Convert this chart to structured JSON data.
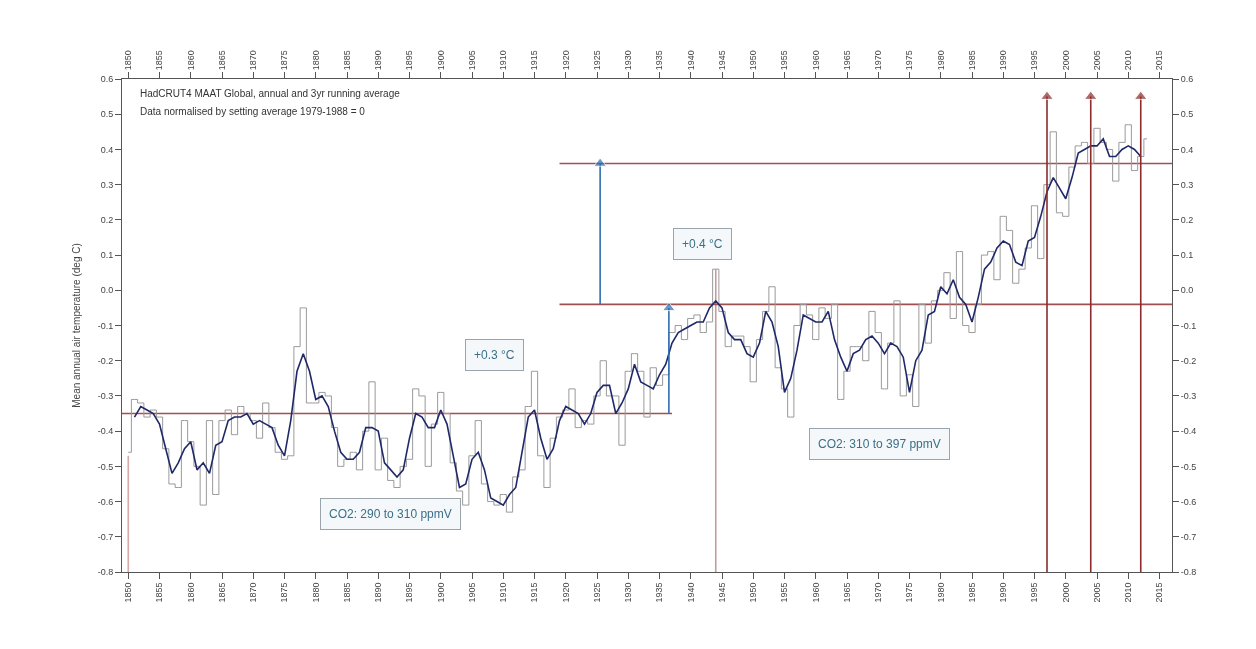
{
  "chart_data": {
    "type": "line",
    "ylabel": "Mean annual air temperature (deg C)",
    "xlim": [
      1849,
      2017
    ],
    "x2lim": [
      1849,
      2017
    ],
    "ylim": [
      -0.8,
      0.6
    ],
    "y2lim": [
      -0.8,
      0.6
    ],
    "xticks": [
      1850,
      1855,
      1860,
      1865,
      1870,
      1875,
      1880,
      1885,
      1890,
      1895,
      1900,
      1905,
      1910,
      1915,
      1920,
      1925,
      1930,
      1935,
      1940,
      1945,
      1950,
      1955,
      1960,
      1965,
      1970,
      1975,
      1980,
      1985,
      1990,
      1995,
      2000,
      2005,
      2010,
      2015
    ],
    "x2ticks": [
      1850,
      1855,
      1860,
      1865,
      1870,
      1875,
      1880,
      1885,
      1890,
      1895,
      1900,
      1905,
      1910,
      1915,
      1920,
      1925,
      1930,
      1935,
      1940,
      1945,
      1950,
      1955,
      1960,
      1965,
      1970,
      1975,
      1980,
      1985,
      1990,
      1995,
      2000,
      2005,
      2010,
      2015
    ],
    "yticks": [
      {
        "value": 0.6,
        "label": "0.6"
      },
      {
        "value": 0.5,
        "label": "0.5"
      },
      {
        "value": 0.4,
        "label": "0.4"
      },
      {
        "value": 0.3,
        "label": "0.3"
      },
      {
        "value": 0.2,
        "label": "0.2"
      },
      {
        "value": 0.1,
        "label": "0.1"
      },
      {
        "value": 0,
        "label": "0.0"
      },
      {
        "value": -0.1,
        "label": "-0.1"
      },
      {
        "value": -0.2,
        "label": "-0.2"
      },
      {
        "value": -0.3,
        "label": "-0.3"
      },
      {
        "value": -0.4,
        "label": "-0.4"
      },
      {
        "value": -0.5,
        "label": "-0.5"
      },
      {
        "value": -0.6,
        "label": "-0.6"
      },
      {
        "value": -0.7,
        "label": "-0.7"
      },
      {
        "value": -0.8,
        "label": "-0.8"
      }
    ],
    "y2ticks": [
      {
        "value": 0.6,
        "label": "0.6"
      },
      {
        "value": 0.5,
        "label": "0.5"
      },
      {
        "value": 0.4,
        "label": "0.4"
      },
      {
        "value": 0.3,
        "label": "0.3"
      },
      {
        "value": 0.2,
        "label": "0.2"
      },
      {
        "value": 0.1,
        "label": "0.1"
      },
      {
        "value": 0,
        "label": "0.0"
      },
      {
        "value": -0.1,
        "label": "-0.1"
      },
      {
        "value": -0.2,
        "label": "-0.2"
      },
      {
        "value": -0.3,
        "label": "-0.3"
      },
      {
        "value": -0.4,
        "label": "-0.4"
      },
      {
        "value": -0.5,
        "label": "-0.5"
      },
      {
        "value": -0.6,
        "label": "-0.6"
      },
      {
        "value": -0.7,
        "label": "-0.7"
      },
      {
        "value": -0.8,
        "label": "-0.8"
      }
    ],
    "series": [
      {
        "color": "#d8a8a8",
        "x": [
          1850,
          1850
        ],
        "values": [
          -0.8,
          -0.47
        ]
      },
      {
        "color": "#c99a9a",
        "x": [
          1944,
          1944
        ],
        "values": [
          -0.8,
          0.06
        ]
      },
      {
        "color": "#a05050",
        "x": [
          1849,
          1937
        ],
        "values": [
          -0.35,
          -0.35
        ]
      },
      {
        "color": "#a05050",
        "x": [
          1919,
          2017
        ],
        "values": [
          -0.04,
          -0.04
        ]
      },
      {
        "color": "#a05050",
        "x": [
          1919,
          2017
        ],
        "values": [
          0.36,
          0.36
        ]
      },
      {
        "type": "step",
        "color": "#9a9a9a",
        "x": [
          1850,
          1851,
          1852,
          1853,
          1854,
          1855,
          1856,
          1857,
          1858,
          1859,
          1860,
          1861,
          1862,
          1863,
          1864,
          1865,
          1866,
          1867,
          1868,
          1869,
          1870,
          1871,
          1872,
          1873,
          1874,
          1875,
          1876,
          1877,
          1878,
          1879,
          1880,
          1881,
          1882,
          1883,
          1884,
          1885,
          1886,
          1887,
          1888,
          1889,
          1890,
          1891,
          1892,
          1893,
          1894,
          1895,
          1896,
          1897,
          1898,
          1899,
          1900,
          1901,
          1902,
          1903,
          1904,
          1905,
          1906,
          1907,
          1908,
          1909,
          1910,
          1911,
          1912,
          1913,
          1914,
          1915,
          1916,
          1917,
          1918,
          1919,
          1920,
          1921,
          1922,
          1923,
          1924,
          1925,
          1926,
          1927,
          1928,
          1929,
          1930,
          1931,
          1932,
          1933,
          1934,
          1935,
          1936,
          1937,
          1938,
          1939,
          1940,
          1941,
          1942,
          1943,
          1944,
          1945,
          1946,
          1947,
          1948,
          1949,
          1950,
          1951,
          1952,
          1953,
          1954,
          1955,
          1956,
          1957,
          1958,
          1959,
          1960,
          1961,
          1962,
          1963,
          1964,
          1965,
          1966,
          1967,
          1968,
          1969,
          1970,
          1971,
          1972,
          1973,
          1974,
          1975,
          1976,
          1977,
          1978,
          1979,
          1980,
          1981,
          1982,
          1983,
          1984,
          1985,
          1986,
          1987,
          1988,
          1989,
          1990,
          1991,
          1992,
          1993,
          1994,
          1995,
          1996,
          1997,
          1998,
          1999,
          2000,
          2001,
          2002,
          2003,
          2004,
          2005,
          2006,
          2007,
          2008,
          2009,
          2010,
          2011,
          2012,
          2013
        ],
        "values": [
          -0.46,
          -0.31,
          -0.32,
          -0.36,
          -0.34,
          -0.36,
          -0.45,
          -0.55,
          -0.56,
          -0.37,
          -0.43,
          -0.5,
          -0.61,
          -0.37,
          -0.58,
          -0.37,
          -0.34,
          -0.41,
          -0.33,
          -0.35,
          -0.37,
          -0.42,
          -0.32,
          -0.39,
          -0.46,
          -0.48,
          -0.47,
          -0.16,
          -0.05,
          -0.32,
          -0.32,
          -0.29,
          -0.3,
          -0.39,
          -0.5,
          -0.48,
          -0.46,
          -0.51,
          -0.4,
          -0.26,
          -0.51,
          -0.42,
          -0.54,
          -0.56,
          -0.5,
          -0.48,
          -0.28,
          -0.3,
          -0.5,
          -0.38,
          -0.29,
          -0.35,
          -0.49,
          -0.57,
          -0.61,
          -0.47,
          -0.37,
          -0.55,
          -0.6,
          -0.61,
          -0.58,
          -0.63,
          -0.53,
          -0.51,
          -0.33,
          -0.23,
          -0.47,
          -0.56,
          -0.42,
          -0.36,
          -0.34,
          -0.28,
          -0.39,
          -0.37,
          -0.38,
          -0.3,
          -0.2,
          -0.3,
          -0.3,
          -0.44,
          -0.23,
          -0.18,
          -0.23,
          -0.36,
          -0.22,
          -0.27,
          -0.24,
          -0.12,
          -0.1,
          -0.14,
          -0.08,
          -0.07,
          -0.12,
          -0.09,
          0.06,
          -0.06,
          -0.16,
          -0.13,
          -0.13,
          -0.16,
          -0.26,
          -0.14,
          -0.06,
          0.01,
          -0.22,
          -0.28,
          -0.36,
          -0.1,
          -0.04,
          -0.07,
          -0.14,
          -0.05,
          -0.08,
          -0.04,
          -0.31,
          -0.23,
          -0.16,
          -0.16,
          -0.2,
          -0.06,
          -0.12,
          -0.28,
          -0.15,
          -0.03,
          -0.3,
          -0.24,
          -0.33,
          -0.04,
          -0.15,
          -0.03,
          0.0,
          0.05,
          -0.08,
          0.11,
          -0.1,
          -0.12,
          -0.04,
          0.1,
          0.11,
          0.03,
          0.21,
          0.17,
          0.02,
          0.06,
          0.12,
          0.24,
          0.09,
          0.3,
          0.45,
          0.22,
          0.21,
          0.35,
          0.41,
          0.42,
          0.36,
          0.46,
          0.42,
          0.4,
          0.31,
          0.42,
          0.47,
          0.34,
          0.38,
          0.43
        ]
      },
      {
        "color": "#1f2868",
        "x": [
          1851,
          1852,
          1853,
          1854,
          1855,
          1856,
          1857,
          1858,
          1859,
          1860,
          1861,
          1862,
          1863,
          1864,
          1865,
          1866,
          1867,
          1868,
          1869,
          1870,
          1871,
          1872,
          1873,
          1874,
          1875,
          1876,
          1877,
          1878,
          1879,
          1880,
          1881,
          1882,
          1883,
          1884,
          1885,
          1886,
          1887,
          1888,
          1889,
          1890,
          1891,
          1892,
          1893,
          1894,
          1895,
          1896,
          1897,
          1898,
          1899,
          1900,
          1901,
          1902,
          1903,
          1904,
          1905,
          1906,
          1907,
          1908,
          1909,
          1910,
          1911,
          1912,
          1913,
          1914,
          1915,
          1916,
          1917,
          1918,
          1919,
          1920,
          1921,
          1922,
          1923,
          1924,
          1925,
          1926,
          1927,
          1928,
          1929,
          1930,
          1931,
          1932,
          1933,
          1934,
          1935,
          1936,
          1937,
          1938,
          1939,
          1940,
          1941,
          1942,
          1943,
          1944,
          1945,
          1946,
          1947,
          1948,
          1949,
          1950,
          1951,
          1952,
          1953,
          1954,
          1955,
          1956,
          1957,
          1958,
          1959,
          1960,
          1961,
          1962,
          1963,
          1964,
          1965,
          1966,
          1967,
          1968,
          1969,
          1970,
          1971,
          1972,
          1973,
          1974,
          1975,
          1976,
          1977,
          1978,
          1979,
          1980,
          1981,
          1982,
          1983,
          1984,
          1985,
          1986,
          1987,
          1988,
          1989,
          1990,
          1991,
          1992,
          1993,
          1994,
          1995,
          1996,
          1997,
          1998,
          1999,
          2000,
          2001,
          2002,
          2003,
          2004,
          2005,
          2006,
          2007,
          2008,
          2009,
          2010,
          2011,
          2012
        ],
        "values": [
          -0.36,
          -0.33,
          -0.34,
          -0.35,
          -0.38,
          -0.45,
          -0.52,
          -0.49,
          -0.45,
          -0.43,
          -0.51,
          -0.49,
          -0.52,
          -0.44,
          -0.43,
          -0.37,
          -0.36,
          -0.36,
          -0.35,
          -0.38,
          -0.37,
          -0.38,
          -0.39,
          -0.44,
          -0.47,
          -0.37,
          -0.23,
          -0.18,
          -0.23,
          -0.31,
          -0.3,
          -0.33,
          -0.4,
          -0.46,
          -0.48,
          -0.48,
          -0.46,
          -0.39,
          -0.39,
          -0.4,
          -0.49,
          -0.51,
          -0.53,
          -0.51,
          -0.42,
          -0.35,
          -0.36,
          -0.39,
          -0.39,
          -0.34,
          -0.38,
          -0.47,
          -0.56,
          -0.55,
          -0.48,
          -0.46,
          -0.51,
          -0.59,
          -0.6,
          -0.61,
          -0.58,
          -0.56,
          -0.46,
          -0.36,
          -0.34,
          -0.42,
          -0.48,
          -0.45,
          -0.37,
          -0.33,
          -0.34,
          -0.35,
          -0.38,
          -0.35,
          -0.29,
          -0.27,
          -0.27,
          -0.35,
          -0.32,
          -0.28,
          -0.21,
          -0.26,
          -0.27,
          -0.28,
          -0.24,
          -0.21,
          -0.15,
          -0.12,
          -0.11,
          -0.1,
          -0.09,
          -0.09,
          -0.05,
          -0.03,
          -0.05,
          -0.12,
          -0.14,
          -0.14,
          -0.18,
          -0.19,
          -0.15,
          -0.06,
          -0.09,
          -0.16,
          -0.29,
          -0.25,
          -0.17,
          -0.07,
          -0.08,
          -0.09,
          -0.09,
          -0.06,
          -0.14,
          -0.19,
          -0.23,
          -0.18,
          -0.17,
          -0.14,
          -0.13,
          -0.15,
          -0.18,
          -0.15,
          -0.16,
          -0.19,
          -0.29,
          -0.2,
          -0.17,
          -0.07,
          -0.06,
          0.01,
          -0.01,
          0.03,
          -0.02,
          -0.04,
          -0.09,
          -0.02,
          0.06,
          0.08,
          0.12,
          0.14,
          0.13,
          0.08,
          0.07,
          0.14,
          0.15,
          0.21,
          0.28,
          0.32,
          0.29,
          0.26,
          0.32,
          0.39,
          0.4,
          0.41,
          0.41,
          0.43,
          0.38,
          0.38,
          0.4,
          0.41,
          0.4,
          0.38
        ]
      },
      {
        "color": "#2f6db0",
        "marker": "triangle",
        "x": [
          1925.5,
          1925.5
        ],
        "values": [
          -0.04,
          0.36
        ]
      },
      {
        "color": "#2f6db0",
        "marker": "triangle",
        "x": [
          1936.5,
          1936.5
        ],
        "values": [
          -0.35,
          -0.05
        ]
      },
      {
        "color": "#8b2b2b",
        "marker": "triangle",
        "x": [
          1997,
          1997
        ],
        "values": [
          -0.8,
          0.55
        ]
      },
      {
        "color": "#8b2b2b",
        "marker": "triangle",
        "x": [
          2004,
          2004
        ],
        "values": [
          -0.8,
          0.55
        ]
      },
      {
        "color": "#8b2b2b",
        "marker": "triangle",
        "x": [
          2012,
          2012
        ],
        "values": [
          -0.8,
          0.55
        ]
      }
    ],
    "annotations": [
      "HadCRUT4 MAAT Global, annual and 3yr running average",
      "Data normalised by setting average 1979-1988 = 0",
      "+0.3 °C",
      "+0.4 °C",
      "CO2: 290 to 310 ppmV",
      "CO2: 310 to 397 ppmV"
    ]
  }
}
